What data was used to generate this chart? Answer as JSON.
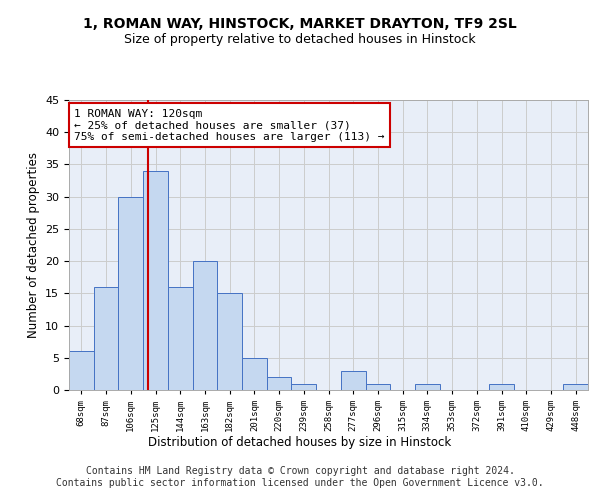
{
  "title1": "1, ROMAN WAY, HINSTOCK, MARKET DRAYTON, TF9 2SL",
  "title2": "Size of property relative to detached houses in Hinstock",
  "xlabel": "Distribution of detached houses by size in Hinstock",
  "ylabel": "Number of detached properties",
  "bar_values": [
    6,
    16,
    30,
    34,
    16,
    20,
    15,
    5,
    2,
    1,
    0,
    3,
    1,
    0,
    1,
    0,
    0,
    1,
    0,
    0,
    1
  ],
  "bar_categories": [
    "68sqm",
    "87sqm",
    "106sqm",
    "125sqm",
    "144sqm",
    "163sqm",
    "182sqm",
    "201sqm",
    "220sqm",
    "239sqm",
    "258sqm",
    "277sqm",
    "296sqm",
    "315sqm",
    "334sqm",
    "353sqm",
    "372sqm",
    "391sqm",
    "410sqm",
    "429sqm",
    "448sqm"
  ],
  "bar_color": "#c5d8f0",
  "bar_edge_color": "#4472c4",
  "vline_color": "#cc0000",
  "vline_pos": 2.68,
  "annotation_text": "1 ROMAN WAY: 120sqm\n← 25% of detached houses are smaller (37)\n75% of semi-detached houses are larger (113) →",
  "annotation_box_color": "#ffffff",
  "annotation_box_edge": "#cc0000",
  "ylim": [
    0,
    45
  ],
  "yticks": [
    0,
    5,
    10,
    15,
    20,
    25,
    30,
    35,
    40,
    45
  ],
  "grid_color": "#cccccc",
  "bg_color": "#e8eef8",
  "footer": "Contains HM Land Registry data © Crown copyright and database right 2024.\nContains public sector information licensed under the Open Government Licence v3.0.",
  "title_fontsize": 10,
  "subtitle_fontsize": 9,
  "footer_fontsize": 7
}
